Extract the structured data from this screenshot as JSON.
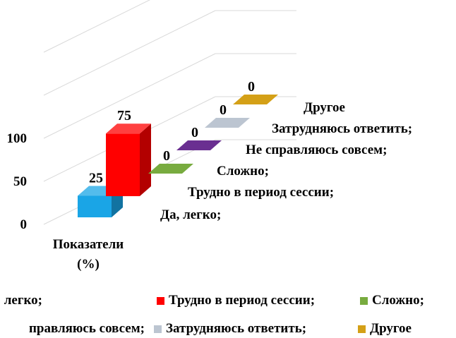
{
  "chart_data": {
    "type": "bar",
    "subtype": "3d-column",
    "categories": [
      "Показатели (%)"
    ],
    "series": [
      {
        "name": "Да, легко;",
        "values": [
          25
        ],
        "color": "#1aa5e6"
      },
      {
        "name": "Трудно в период сессии;",
        "values": [
          75
        ],
        "color": "#ff0000"
      },
      {
        "name": "Сложно;",
        "values": [
          0
        ],
        "color": "#78ab3f"
      },
      {
        "name": "Не справляюсь совсем;",
        "values": [
          0
        ],
        "color": "#6a2f91"
      },
      {
        "name": "Затрудняюсь ответить;",
        "values": [
          0
        ],
        "color": "#bcc5d1"
      },
      {
        "name": "Другое",
        "values": [
          0
        ],
        "color": "#d4a017"
      }
    ],
    "yticks": [
      "0",
      "50",
      "100"
    ],
    "ylim": [
      0,
      100
    ],
    "data_labels": [
      "25",
      "75",
      "0",
      "0",
      "0",
      "0"
    ],
    "depth_labels": [
      "Да, легко;",
      "Трудно в период сессии;",
      "Сложно;",
      "Не справляюсь совсем;",
      "Затрудняюсь ответить;",
      "Другое"
    ],
    "category_label_lines": [
      "Показатели",
      "(%)"
    ],
    "grid": true,
    "legend_position": "bottom"
  },
  "legend": {
    "row1": [
      {
        "label": "легко;",
        "full": "Да, легко;",
        "color": "#1aa5e6",
        "swatch": false
      },
      {
        "label": "Трудно в период сессии;",
        "color": "#ff0000",
        "swatch": true
      },
      {
        "label": "Сложно;",
        "color": "#78ab3f",
        "swatch": true
      }
    ],
    "row2": [
      {
        "label": "правляюсь совсем;",
        "full": "Не справляюсь совсем;",
        "color": "#6a2f91",
        "swatch": false
      },
      {
        "label": "Затрудняюсь ответить;",
        "color": "#bcc5d1",
        "swatch": true
      },
      {
        "label": "Другое",
        "color": "#d4a017",
        "swatch": true
      }
    ]
  }
}
